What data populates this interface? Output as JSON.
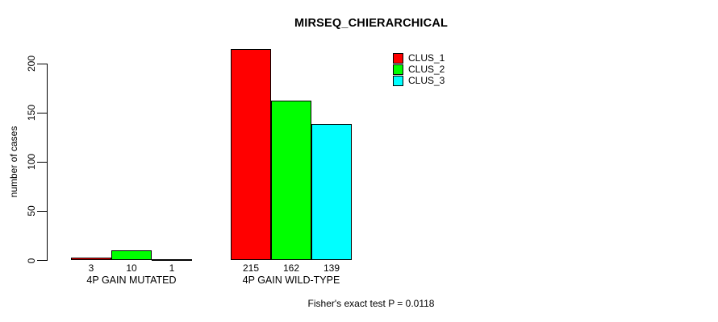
{
  "chart_data": {
    "type": "bar",
    "title": "MIRSEQ_CHIERARCHICAL",
    "ylabel": "number of cases",
    "xlabel": "",
    "categories": [
      "4P GAIN MUTATED",
      "4P GAIN WILD-TYPE"
    ],
    "series": [
      {
        "name": "CLUS_1",
        "color": "#ff0000",
        "values": [
          3,
          215
        ]
      },
      {
        "name": "CLUS_2",
        "color": "#00ff00",
        "values": [
          10,
          162
        ]
      },
      {
        "name": "CLUS_3",
        "color": "#00ffff",
        "values": [
          1,
          139
        ]
      }
    ],
    "bar_value_labels": [
      [
        "3",
        "10",
        "1"
      ],
      [
        "215",
        "162",
        "139"
      ]
    ],
    "yticks": [
      0,
      50,
      100,
      150,
      200
    ],
    "ylim": [
      0,
      220
    ],
    "grid": false,
    "legend_position": "top-right",
    "legend_entries": [
      "CLUS_1",
      "CLUS_2",
      "CLUS_3"
    ],
    "annotation": "Fisher's exact test P = 0.0118"
  }
}
